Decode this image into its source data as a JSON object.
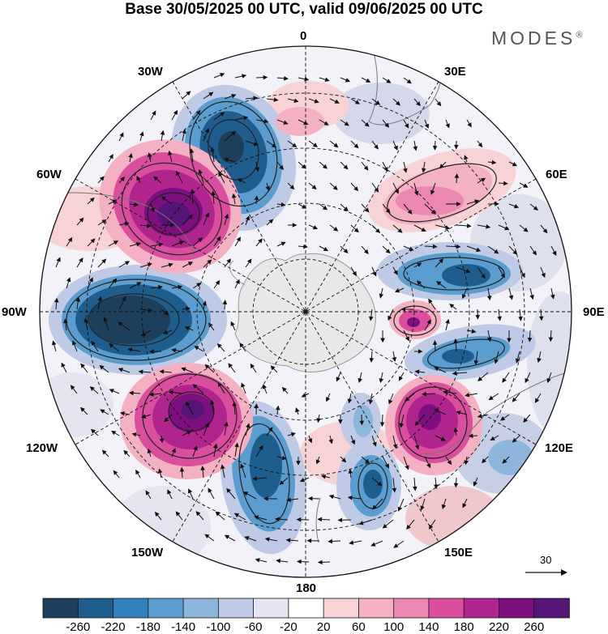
{
  "title": "Base 30/05/2025 00 UTC, valid 09/06/2025 00 UTC",
  "brand": "MODES",
  "brand_mark": "®",
  "longitude_labels": {
    "lon_0": "0",
    "lon_30e": "30E",
    "lon_60e": "60E",
    "lon_90e": "90E",
    "lon_120e": "120E",
    "lon_150e": "150E",
    "lon_180": "180",
    "lon_150w": "150W",
    "lon_120w": "120W",
    "lon_90w": "90W",
    "lon_60w": "60W",
    "lon_30w": "30W"
  },
  "reference_vector": {
    "value": "30"
  },
  "colorbar": {
    "ticks": [
      "-260",
      "-220",
      "-180",
      "-140",
      "-100",
      "-60",
      "-20",
      "20",
      "60",
      "100",
      "140",
      "180",
      "220",
      "260"
    ],
    "colors": [
      "#1d3f5c",
      "#1f5d8c",
      "#3280bc",
      "#5b9dcf",
      "#8eb6dc",
      "#bfcbe6",
      "#e5e4f1",
      "#ffffff",
      "#f8d3d6",
      "#f4b1c3",
      "#ec86b3",
      "#d94f9e",
      "#b0248e",
      "#7e0f7e",
      "#541577"
    ]
  }
}
